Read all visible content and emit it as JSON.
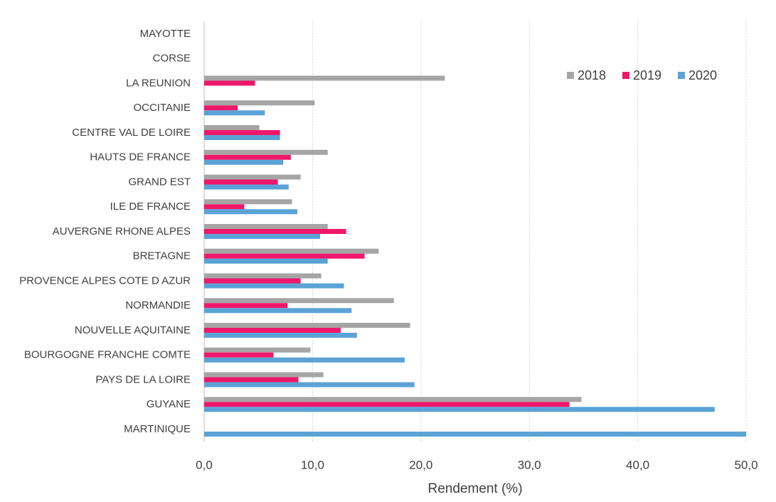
{
  "chart_data": {
    "type": "hbar",
    "x_label": "Rendement (%)",
    "categories": [
      "MAYOTTE",
      "CORSE",
      "LA REUNION",
      "OCCITANIE",
      "CENTRE VAL DE LOIRE",
      "HAUTS DE FRANCE",
      "GRAND EST",
      "ILE DE FRANCE",
      "AUVERGNE RHONE ALPES",
      "BRETAGNE",
      "PROVENCE ALPES COTE D AZUR",
      "NORMANDIE",
      "NOUVELLE AQUITAINE",
      "BOURGOGNE FRANCHE COMTE",
      "PAYS DE LA LOIRE",
      "GUYANE",
      "MARTINIQUE"
    ],
    "series": [
      {
        "name": "2018",
        "color": "#a5a5a5",
        "values": [
          null,
          null,
          22.2,
          10.2,
          5.1,
          11.4,
          8.9,
          8.1,
          11.4,
          16.1,
          10.8,
          17.5,
          19.0,
          9.8,
          11.0,
          34.8,
          null
        ]
      },
      {
        "name": "2019",
        "color": "#f0186a",
        "values": [
          null,
          null,
          4.7,
          3.1,
          7.0,
          8.0,
          6.8,
          3.7,
          13.1,
          14.8,
          8.9,
          7.7,
          12.6,
          6.4,
          8.7,
          33.7,
          null
        ]
      },
      {
        "name": "2020",
        "color": "#5ba3d6",
        "values": [
          null,
          null,
          null,
          5.6,
          7.0,
          7.3,
          7.8,
          8.6,
          10.7,
          11.4,
          12.9,
          13.6,
          14.1,
          18.5,
          19.4,
          47.1,
          50
        ]
      }
    ],
    "xlim": [
      0,
      50
    ],
    "xticks": [
      {
        "value": 0,
        "label": "0,0"
      },
      {
        "value": 10,
        "label": "10,0"
      },
      {
        "value": 20,
        "label": "20,0"
      },
      {
        "value": 30,
        "label": "30,0"
      },
      {
        "value": 40,
        "label": "40,0"
      },
      {
        "value": 50,
        "label": "50,0"
      }
    ],
    "grid": true,
    "legend": "upper-right"
  }
}
